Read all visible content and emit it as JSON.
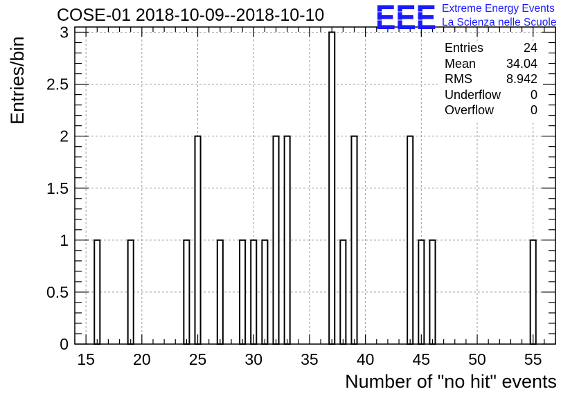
{
  "title": "COSE-01 2018-10-09--2018-10-10",
  "logo": {
    "letters": "EEE",
    "line1": "Extreme Energy Events",
    "line2": "La Scienza nelle Scuole",
    "color": "#1a1aff"
  },
  "stats": [
    {
      "label": "Entries",
      "value": "24"
    },
    {
      "label": "Mean",
      "value": "34.04"
    },
    {
      "label": "RMS",
      "value": "8.942"
    },
    {
      "label": "Underflow",
      "value": "0"
    },
    {
      "label": "Overflow",
      "value": "0"
    }
  ],
  "chart_data": {
    "type": "bar",
    "title": "COSE-01 2018-10-09--2018-10-10",
    "xlabel": "Number of \"no hit\" events",
    "ylabel": "Entries/bin",
    "xlim": [
      14,
      57
    ],
    "ylim": [
      0,
      3.05
    ],
    "x_ticks": [
      15,
      20,
      25,
      30,
      35,
      40,
      45,
      50,
      55
    ],
    "y_ticks": [
      0,
      0.5,
      1,
      1.5,
      2,
      2.5,
      3
    ],
    "y_tick_labels": [
      "0",
      "0.5",
      "1",
      "1.5",
      "2",
      "2.5",
      "3"
    ],
    "grid": true,
    "bin_width": 0.5,
    "bins": [
      {
        "x": 16,
        "value": 1
      },
      {
        "x": 19,
        "value": 1
      },
      {
        "x": 24,
        "value": 1
      },
      {
        "x": 25,
        "value": 2
      },
      {
        "x": 27,
        "value": 1
      },
      {
        "x": 29,
        "value": 1
      },
      {
        "x": 30,
        "value": 1
      },
      {
        "x": 31,
        "value": 1
      },
      {
        "x": 32,
        "value": 2
      },
      {
        "x": 33,
        "value": 2
      },
      {
        "x": 37,
        "value": 3
      },
      {
        "x": 38,
        "value": 1
      },
      {
        "x": 39,
        "value": 2
      },
      {
        "x": 44,
        "value": 2
      },
      {
        "x": 45,
        "value": 1
      },
      {
        "x": 46,
        "value": 1
      },
      {
        "x": 55,
        "value": 1
      }
    ]
  }
}
